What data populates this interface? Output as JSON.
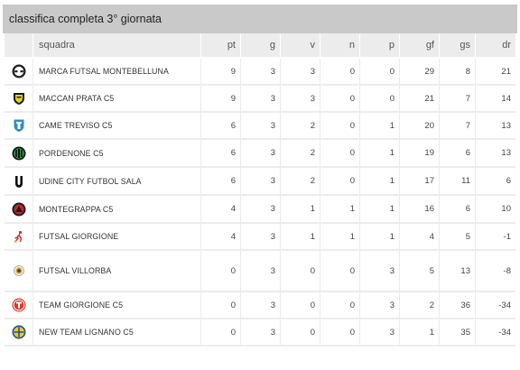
{
  "title": "classifica completa 3° giornata",
  "columns": [
    "squadra",
    "pt",
    "g",
    "v",
    "n",
    "p",
    "gf",
    "gs",
    "dr"
  ],
  "rows": [
    {
      "squadra": "MARCA FUTSAL MONTEBELLUNA",
      "pt": "9",
      "g": "3",
      "v": "3",
      "n": "0",
      "p": "0",
      "gf": "29",
      "gs": "8",
      "dr": "21",
      "logo": "marca-logo-icon"
    },
    {
      "squadra": "MACCAN PRATA C5",
      "pt": "9",
      "g": "3",
      "v": "3",
      "n": "0",
      "p": "0",
      "gf": "21",
      "gs": "7",
      "dr": "14",
      "logo": "maccan-logo-icon"
    },
    {
      "squadra": "CAME TREVISO C5",
      "pt": "6",
      "g": "3",
      "v": "2",
      "n": "0",
      "p": "1",
      "gf": "20",
      "gs": "7",
      "dr": "13",
      "logo": "came-logo-icon"
    },
    {
      "squadra": "PORDENONE C5",
      "pt": "6",
      "g": "3",
      "v": "2",
      "n": "0",
      "p": "1",
      "gf": "19",
      "gs": "6",
      "dr": "13",
      "logo": "pordenone-logo-icon"
    },
    {
      "squadra": "UDINE CITY FUTBOL SALA",
      "pt": "6",
      "g": "3",
      "v": "2",
      "n": "0",
      "p": "1",
      "gf": "17",
      "gs": "11",
      "dr": "6",
      "logo": "udine-logo-icon"
    },
    {
      "squadra": "MONTEGRAPPA C5",
      "pt": "4",
      "g": "3",
      "v": "1",
      "n": "1",
      "p": "1",
      "gf": "16",
      "gs": "6",
      "dr": "10",
      "logo": "montegrappa-logo-icon"
    },
    {
      "squadra": "FUTSAL GIORGIONE",
      "pt": "4",
      "g": "3",
      "v": "1",
      "n": "1",
      "p": "1",
      "gf": "4",
      "gs": "5",
      "dr": "-1",
      "logo": "giorgione-logo-icon"
    },
    {
      "squadra": "FUTSAL VILLORBA",
      "pt": "0",
      "g": "3",
      "v": "0",
      "n": "0",
      "p": "3",
      "gf": "5",
      "gs": "13",
      "dr": "-8",
      "logo": "villorba-logo-icon"
    },
    {
      "squadra": "TEAM GIORGIONE C5",
      "pt": "0",
      "g": "3",
      "v": "0",
      "n": "0",
      "p": "3",
      "gf": "2",
      "gs": "36",
      "dr": "-34",
      "logo": "team-giorgione-logo-icon"
    },
    {
      "squadra": "NEW TEAM LIGNANO C5",
      "pt": "0",
      "g": "3",
      "v": "0",
      "n": "0",
      "p": "3",
      "gf": "1",
      "gs": "35",
      "dr": "-34",
      "logo": "lignano-logo-icon"
    }
  ]
}
